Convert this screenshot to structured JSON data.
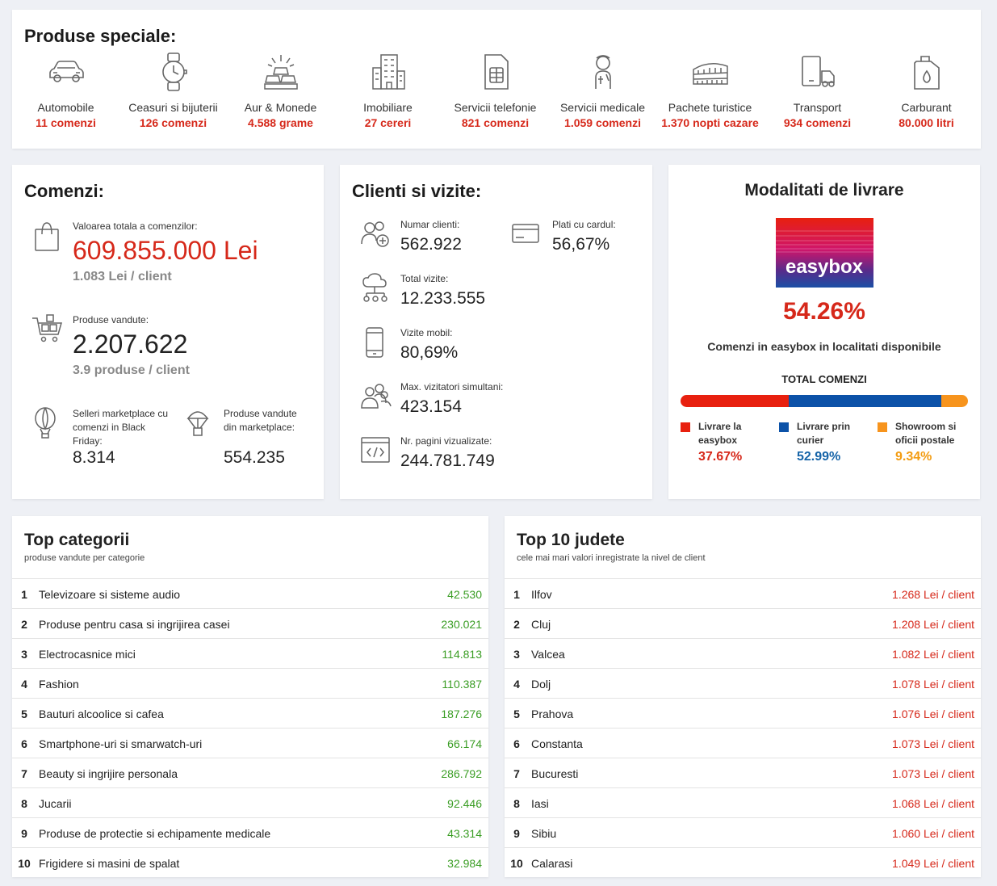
{
  "special": {
    "title": "Produse speciale:",
    "items": [
      {
        "name": "Automobile",
        "value": "11 comenzi",
        "icon": "car-icon"
      },
      {
        "name": "Ceasuri si bijuterii",
        "value": "126 comenzi",
        "icon": "watch-icon"
      },
      {
        "name": "Aur & Monede",
        "value": "4.588 grame",
        "icon": "gold-bars-icon"
      },
      {
        "name": "Imobiliare",
        "value": "27 cereri",
        "icon": "building-icon"
      },
      {
        "name": "Servicii telefonie",
        "value": "821 comenzi",
        "icon": "sim-card-icon"
      },
      {
        "name": "Servicii medicale",
        "value": "1.059 comenzi",
        "icon": "medical-icon"
      },
      {
        "name": "Pachete turistice",
        "value": "1.370 nopti cazare",
        "icon": "colosseum-icon"
      },
      {
        "name": "Transport",
        "value": "934 comenzi",
        "icon": "transport-icon"
      },
      {
        "name": "Carburant",
        "value": "80.000 litri",
        "icon": "fuel-can-icon"
      }
    ]
  },
  "comenzi": {
    "title": "Comenzi:",
    "total_label": "Valoarea totala a comenzilor:",
    "total_value": "609.855.000 Lei",
    "total_sub": "1.083 Lei / client",
    "products_label": "Produse vandute:",
    "products_value": "2.207.622",
    "products_sub": "3.9 produse / client",
    "sellers_label": "Selleri marketplace cu comenzi in Black Friday:",
    "sellers_value": "8.314",
    "mp_label": "Produse vandute din marketplace:",
    "mp_value": "554.235"
  },
  "clienti": {
    "title": "Clienti si vizite:",
    "clients_label": "Numar clienti:",
    "clients_value": "562.922",
    "card_label": "Plati cu cardul:",
    "card_value": "56,67%",
    "visits_label": "Total vizite:",
    "visits_value": "12.233.555",
    "mobile_label": "Vizite mobil:",
    "mobile_value": "80,69%",
    "simul_label": "Max. vizitatori simultani:",
    "simul_value": "423.154",
    "pages_label": "Nr. pagini vizualizate:",
    "pages_value": "244.781.749"
  },
  "livrare": {
    "title": "Modalitati de livrare",
    "logo_text": "easybox",
    "percent": "54.26%",
    "description": "Comenzi in easybox in localitati disponibile",
    "total_label": "TOTAL COMENZI",
    "colors": {
      "easybox": "#e8200f",
      "curier": "#0c52a8",
      "showroom": "#f7941d"
    },
    "segments": [
      {
        "label": "Livrare la easybox",
        "value": "37.67%",
        "fraction": 0.3767
      },
      {
        "label": "Livrare prin curier",
        "value": "52.99%",
        "fraction": 0.5299
      },
      {
        "label": "Showroom si oficii postale",
        "value": "9.34%",
        "fraction": 0.0934
      }
    ]
  },
  "top_categorii": {
    "title": "Top categorii",
    "subtitle": "produse vandute per categorie",
    "rows": [
      {
        "n": "1",
        "label": "Televizoare si sisteme audio",
        "value": "42.530"
      },
      {
        "n": "2",
        "label": "Produse pentru casa si ingrijirea casei",
        "value": "230.021"
      },
      {
        "n": "3",
        "label": "Electrocasnice mici",
        "value": "114.813"
      },
      {
        "n": "4",
        "label": "Fashion",
        "value": "110.387"
      },
      {
        "n": "5",
        "label": "Bauturi alcoolice si cafea",
        "value": "187.276"
      },
      {
        "n": "6",
        "label": "Smartphone-uri si smarwatch-uri",
        "value": "66.174"
      },
      {
        "n": "7",
        "label": "Beauty si ingrijire personala",
        "value": "286.792"
      },
      {
        "n": "8",
        "label": "Jucarii",
        "value": "92.446"
      },
      {
        "n": "9",
        "label": "Produse de protectie si echipamente medicale",
        "value": "43.314"
      },
      {
        "n": "10",
        "label": "Frigidere si masini de spalat",
        "value": "32.984"
      }
    ]
  },
  "top_judete": {
    "title": "Top 10 judete",
    "subtitle": "cele mai mari valori inregistrate la nivel de client",
    "rows": [
      {
        "n": "1",
        "label": "Ilfov",
        "value": "1.268 Lei / client"
      },
      {
        "n": "2",
        "label": "Cluj",
        "value": "1.208 Lei / client"
      },
      {
        "n": "3",
        "label": "Valcea",
        "value": "1.082 Lei / client"
      },
      {
        "n": "4",
        "label": "Dolj",
        "value": "1.078 Lei / client"
      },
      {
        "n": "5",
        "label": "Prahova",
        "value": "1.076 Lei / client"
      },
      {
        "n": "6",
        "label": "Constanta",
        "value": "1.073 Lei / client"
      },
      {
        "n": "7",
        "label": "Bucuresti",
        "value": "1.073 Lei / client"
      },
      {
        "n": "8",
        "label": "Iasi",
        "value": "1.068 Lei / client"
      },
      {
        "n": "9",
        "label": "Sibiu",
        "value": "1.060 Lei / client"
      },
      {
        "n": "10",
        "label": "Calarasi",
        "value": "1.049 Lei / client"
      }
    ]
  }
}
